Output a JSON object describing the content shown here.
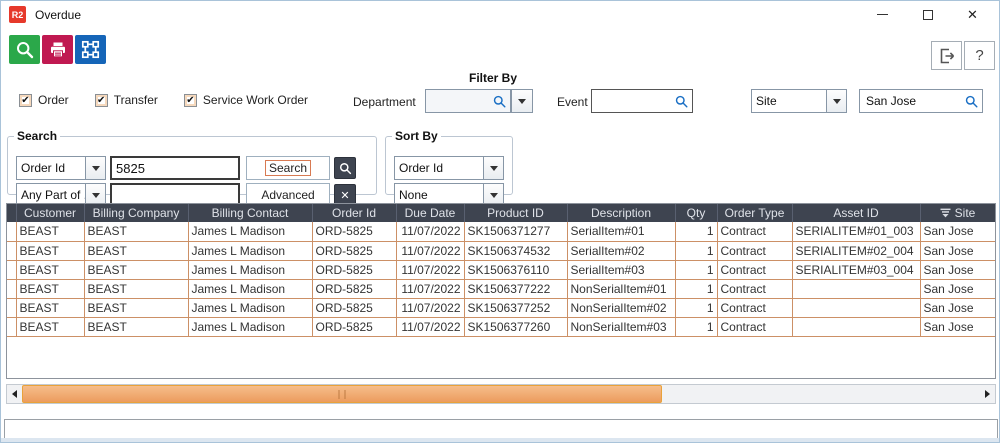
{
  "window": {
    "title": "Overdue",
    "logo_text": "R2",
    "controls": {
      "minimize": "minimize",
      "maximize": "maximize",
      "close": "close"
    }
  },
  "toolbar": {
    "buttons": [
      {
        "name": "search",
        "icon": "magnifier-icon",
        "color": "#2ba84a"
      },
      {
        "name": "print",
        "icon": "printer-icon",
        "color": "#c01951"
      },
      {
        "name": "workflow",
        "icon": "org-chart-icon",
        "color": "#1565b8"
      }
    ],
    "exit_icon": "exit-door-arrow-icon",
    "help_label": "?"
  },
  "filter_bar": {
    "filter_by_label": "Filter By",
    "checkboxes": [
      {
        "label": "Order",
        "checked": true
      },
      {
        "label": "Transfer",
        "checked": true
      },
      {
        "label": "Service Work Order",
        "checked": true
      }
    ],
    "department_label": "Department",
    "department_value": "",
    "event_label": "Event",
    "event_value": "",
    "site_dropdown_value": "Site",
    "site_search_value": "San Jose"
  },
  "search_box": {
    "legend": "Search",
    "field1_selector": "Order Id",
    "field1_value": "5825",
    "search_button": "Search",
    "field2_selector": "Any Part of ...",
    "field2_value": "",
    "advanced_button": "Advanced",
    "clear_icon": "x-icon",
    "find_icon": "magnifier-icon"
  },
  "sort_box": {
    "legend": "Sort By",
    "primary": "Order Id",
    "secondary": "None"
  },
  "table": {
    "columns": [
      {
        "label": "Customer",
        "align": "l"
      },
      {
        "label": "Billing Company",
        "align": "l"
      },
      {
        "label": "Billing Contact",
        "align": "l"
      },
      {
        "label": "Order Id",
        "align": "l"
      },
      {
        "label": "Due Date",
        "align": "r"
      },
      {
        "label": "Product ID",
        "align": "l"
      },
      {
        "label": "Description",
        "align": "l"
      },
      {
        "label": "Qty",
        "align": "r"
      },
      {
        "label": "Order Type",
        "align": "l"
      },
      {
        "label": "Asset ID",
        "align": "l"
      },
      {
        "label": "Site",
        "align": "l",
        "sort_icon": "sort-descending-icon"
      }
    ],
    "rows": [
      [
        "BEAST",
        "BEAST",
        "James L Madison",
        "ORD-5825",
        "11/07/2022",
        "SK1506371277",
        "SerialItem#01",
        "1",
        "Contract",
        "SERIALITEM#01_003",
        "San Jose"
      ],
      [
        "BEAST",
        "BEAST",
        "James L Madison",
        "ORD-5825",
        "11/07/2022",
        "SK1506374532",
        "SerialItem#02",
        "1",
        "Contract",
        "SERIALITEM#02_004",
        "San Jose"
      ],
      [
        "BEAST",
        "BEAST",
        "James L Madison",
        "ORD-5825",
        "11/07/2022",
        "SK1506376110",
        "SerialItem#03",
        "1",
        "Contract",
        "SERIALITEM#03_004",
        "San Jose"
      ],
      [
        "BEAST",
        "BEAST",
        "James L Madison",
        "ORD-5825",
        "11/07/2022",
        "SK1506377222",
        "NonSerialItem#01",
        "1",
        "Contract",
        "",
        "San Jose"
      ],
      [
        "BEAST",
        "BEAST",
        "James L Madison",
        "ORD-5825",
        "11/07/2022",
        "SK1506377252",
        "NonSerialItem#02",
        "1",
        "Contract",
        "",
        "San Jose"
      ],
      [
        "BEAST",
        "BEAST",
        "James L Madison",
        "ORD-5825",
        "11/07/2022",
        "SK1506377260",
        "NonSerialItem#03",
        "1",
        "Contract",
        "",
        "San Jose"
      ]
    ]
  },
  "colors": {
    "table_header_bg": "#3e4450",
    "grid_line": "#cc9066",
    "scroll_thumb": "#f2a96e",
    "scroll_thumb_border": "#e9a23a",
    "toolbar_green": "#2ba84a",
    "toolbar_crimson": "#c01951",
    "toolbar_blue": "#1565b8",
    "logo_red": "#e6392b",
    "field_icon_blue": "#1a6fc4"
  }
}
